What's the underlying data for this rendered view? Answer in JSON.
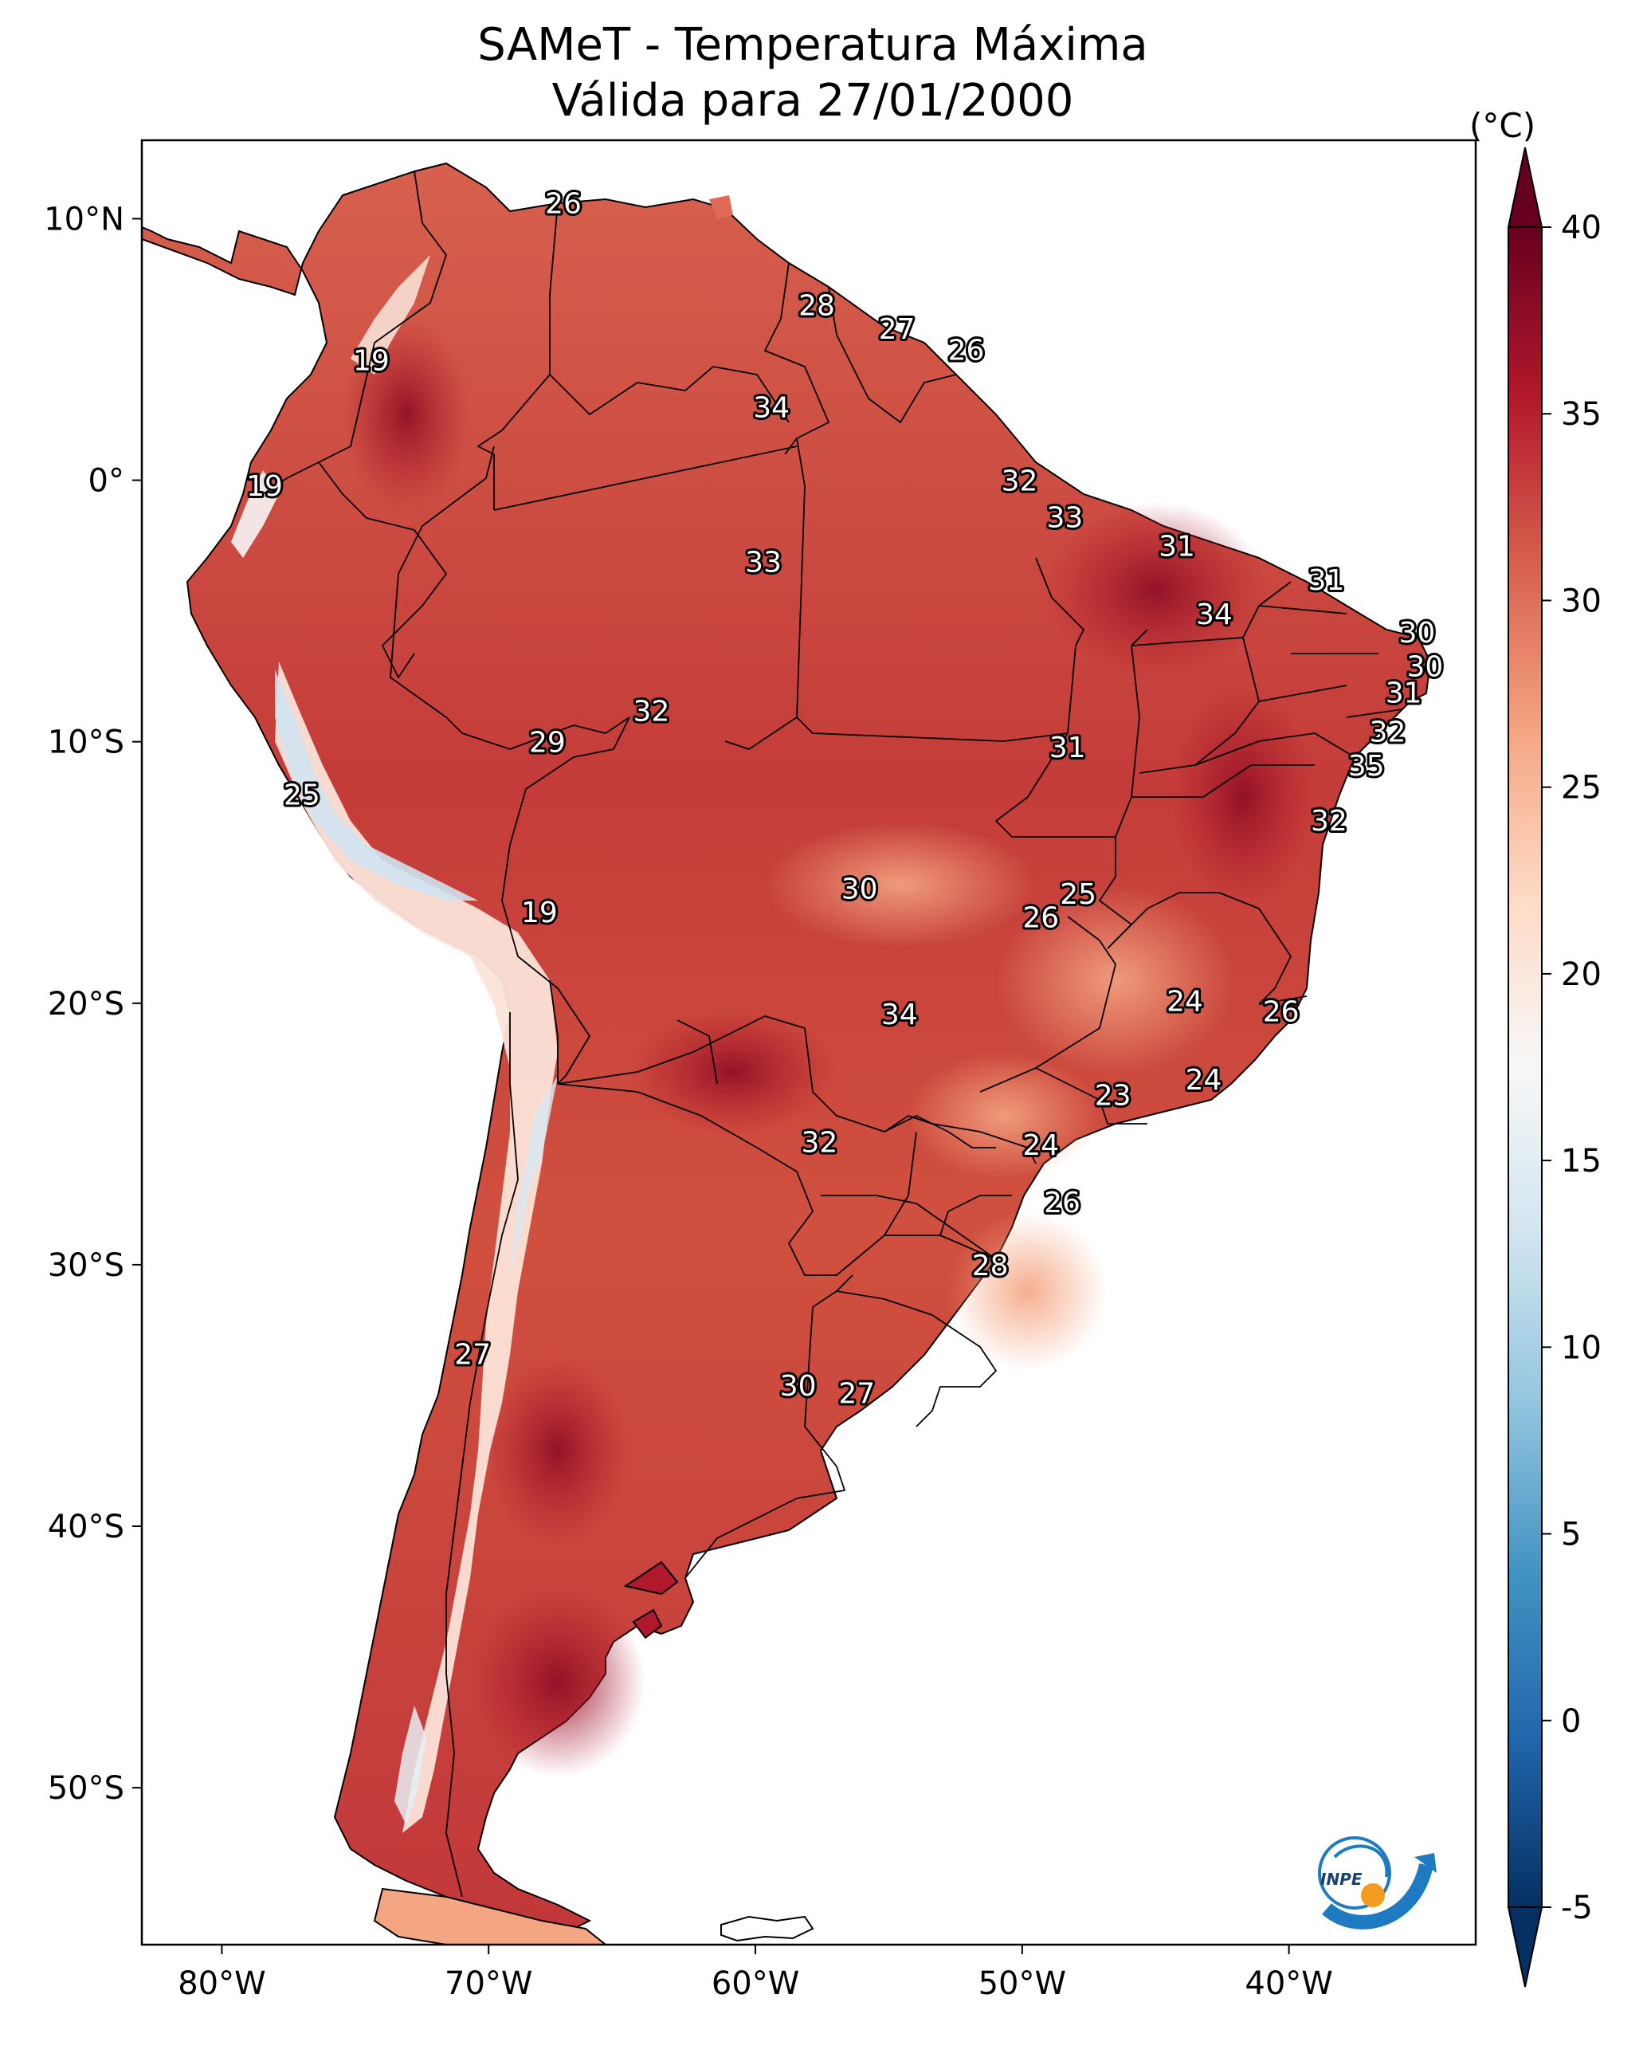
{
  "title": {
    "line1": "SAMeT - Temperatura Máxima",
    "line2": "Válida para 27/01/2000"
  },
  "map": {
    "lon_range": [
      -83,
      -33
    ],
    "lat_range": [
      -56,
      13
    ],
    "lon_ticks": [
      {
        "value": -80,
        "label": "80°W"
      },
      {
        "value": -70,
        "label": "70°W"
      },
      {
        "value": -60,
        "label": "60°W"
      },
      {
        "value": -50,
        "label": "50°W"
      },
      {
        "value": -40,
        "label": "40°W"
      }
    ],
    "lat_ticks": [
      {
        "value": 10,
        "label": "10°N"
      },
      {
        "value": 0,
        "label": "0°"
      },
      {
        "value": -10,
        "label": "10°S"
      },
      {
        "value": -20,
        "label": "20°S"
      },
      {
        "value": -30,
        "label": "30°S"
      },
      {
        "value": -40,
        "label": "40°S"
      },
      {
        "value": -50,
        "label": "50°S"
      }
    ],
    "city_labels": [
      {
        "lon": -67.2,
        "lat": 10.6,
        "text": "26"
      },
      {
        "lon": -57.7,
        "lat": 6.7,
        "text": "28"
      },
      {
        "lon": -54.7,
        "lat": 5.8,
        "text": "27"
      },
      {
        "lon": -52.1,
        "lat": 5.0,
        "text": "26"
      },
      {
        "lon": -74.4,
        "lat": 4.6,
        "text": "19"
      },
      {
        "lon": -59.4,
        "lat": 2.8,
        "text": "34"
      },
      {
        "lon": -78.4,
        "lat": -0.2,
        "text": "19"
      },
      {
        "lon": -50.1,
        "lat": 0.0,
        "text": "32"
      },
      {
        "lon": -48.4,
        "lat": -1.4,
        "text": "33"
      },
      {
        "lon": -44.2,
        "lat": -2.5,
        "text": "31"
      },
      {
        "lon": -38.6,
        "lat": -3.8,
        "text": "31"
      },
      {
        "lon": -59.7,
        "lat": -3.1,
        "text": "33"
      },
      {
        "lon": -42.8,
        "lat": -5.1,
        "text": "34"
      },
      {
        "lon": -35.2,
        "lat": -5.8,
        "text": "30"
      },
      {
        "lon": -34.9,
        "lat": -7.1,
        "text": "30"
      },
      {
        "lon": -35.7,
        "lat": -8.1,
        "text": "31"
      },
      {
        "lon": -63.9,
        "lat": -8.8,
        "text": "32"
      },
      {
        "lon": -36.3,
        "lat": -9.6,
        "text": "32"
      },
      {
        "lon": -67.8,
        "lat": -10.0,
        "text": "29"
      },
      {
        "lon": -48.3,
        "lat": -10.2,
        "text": "31"
      },
      {
        "lon": -37.1,
        "lat": -10.9,
        "text": "35"
      },
      {
        "lon": -77.0,
        "lat": -12.0,
        "text": "25"
      },
      {
        "lon": -38.5,
        "lat": -13.0,
        "text": "32"
      },
      {
        "lon": -56.1,
        "lat": -15.6,
        "text": "30"
      },
      {
        "lon": -47.9,
        "lat": -15.8,
        "text": "25"
      },
      {
        "lon": -49.3,
        "lat": -16.7,
        "text": "26"
      },
      {
        "lon": -68.1,
        "lat": -16.5,
        "text": "19"
      },
      {
        "lon": -43.9,
        "lat": -19.9,
        "text": "24"
      },
      {
        "lon": -40.3,
        "lat": -20.3,
        "text": "26"
      },
      {
        "lon": -54.6,
        "lat": -20.4,
        "text": "34"
      },
      {
        "lon": -43.2,
        "lat": -22.9,
        "text": "24"
      },
      {
        "lon": -46.6,
        "lat": -23.5,
        "text": "23"
      },
      {
        "lon": -57.6,
        "lat": -25.3,
        "text": "32"
      },
      {
        "lon": -49.3,
        "lat": -25.4,
        "text": "24"
      },
      {
        "lon": -48.5,
        "lat": -27.6,
        "text": "26"
      },
      {
        "lon": -51.2,
        "lat": -30.0,
        "text": "28"
      },
      {
        "lon": -70.6,
        "lat": -33.4,
        "text": "27"
      },
      {
        "lon": -58.4,
        "lat": -34.6,
        "text": "30"
      },
      {
        "lon": -56.2,
        "lat": -34.9,
        "text": "27"
      }
    ]
  },
  "colorbar": {
    "unit": "(°C)",
    "min": -5,
    "max": 40,
    "ticks": [
      "-5",
      "0",
      "5",
      "10",
      "15",
      "20",
      "25",
      "30",
      "35",
      "40"
    ],
    "colors": [
      "#053061",
      "#2166ac",
      "#4393c3",
      "#92c5de",
      "#d1e5f0",
      "#f7f7f7",
      "#fddbc7",
      "#f4a582",
      "#d6604d",
      "#b2182b",
      "#67001f"
    ]
  },
  "logo": {
    "text": "INPE"
  }
}
